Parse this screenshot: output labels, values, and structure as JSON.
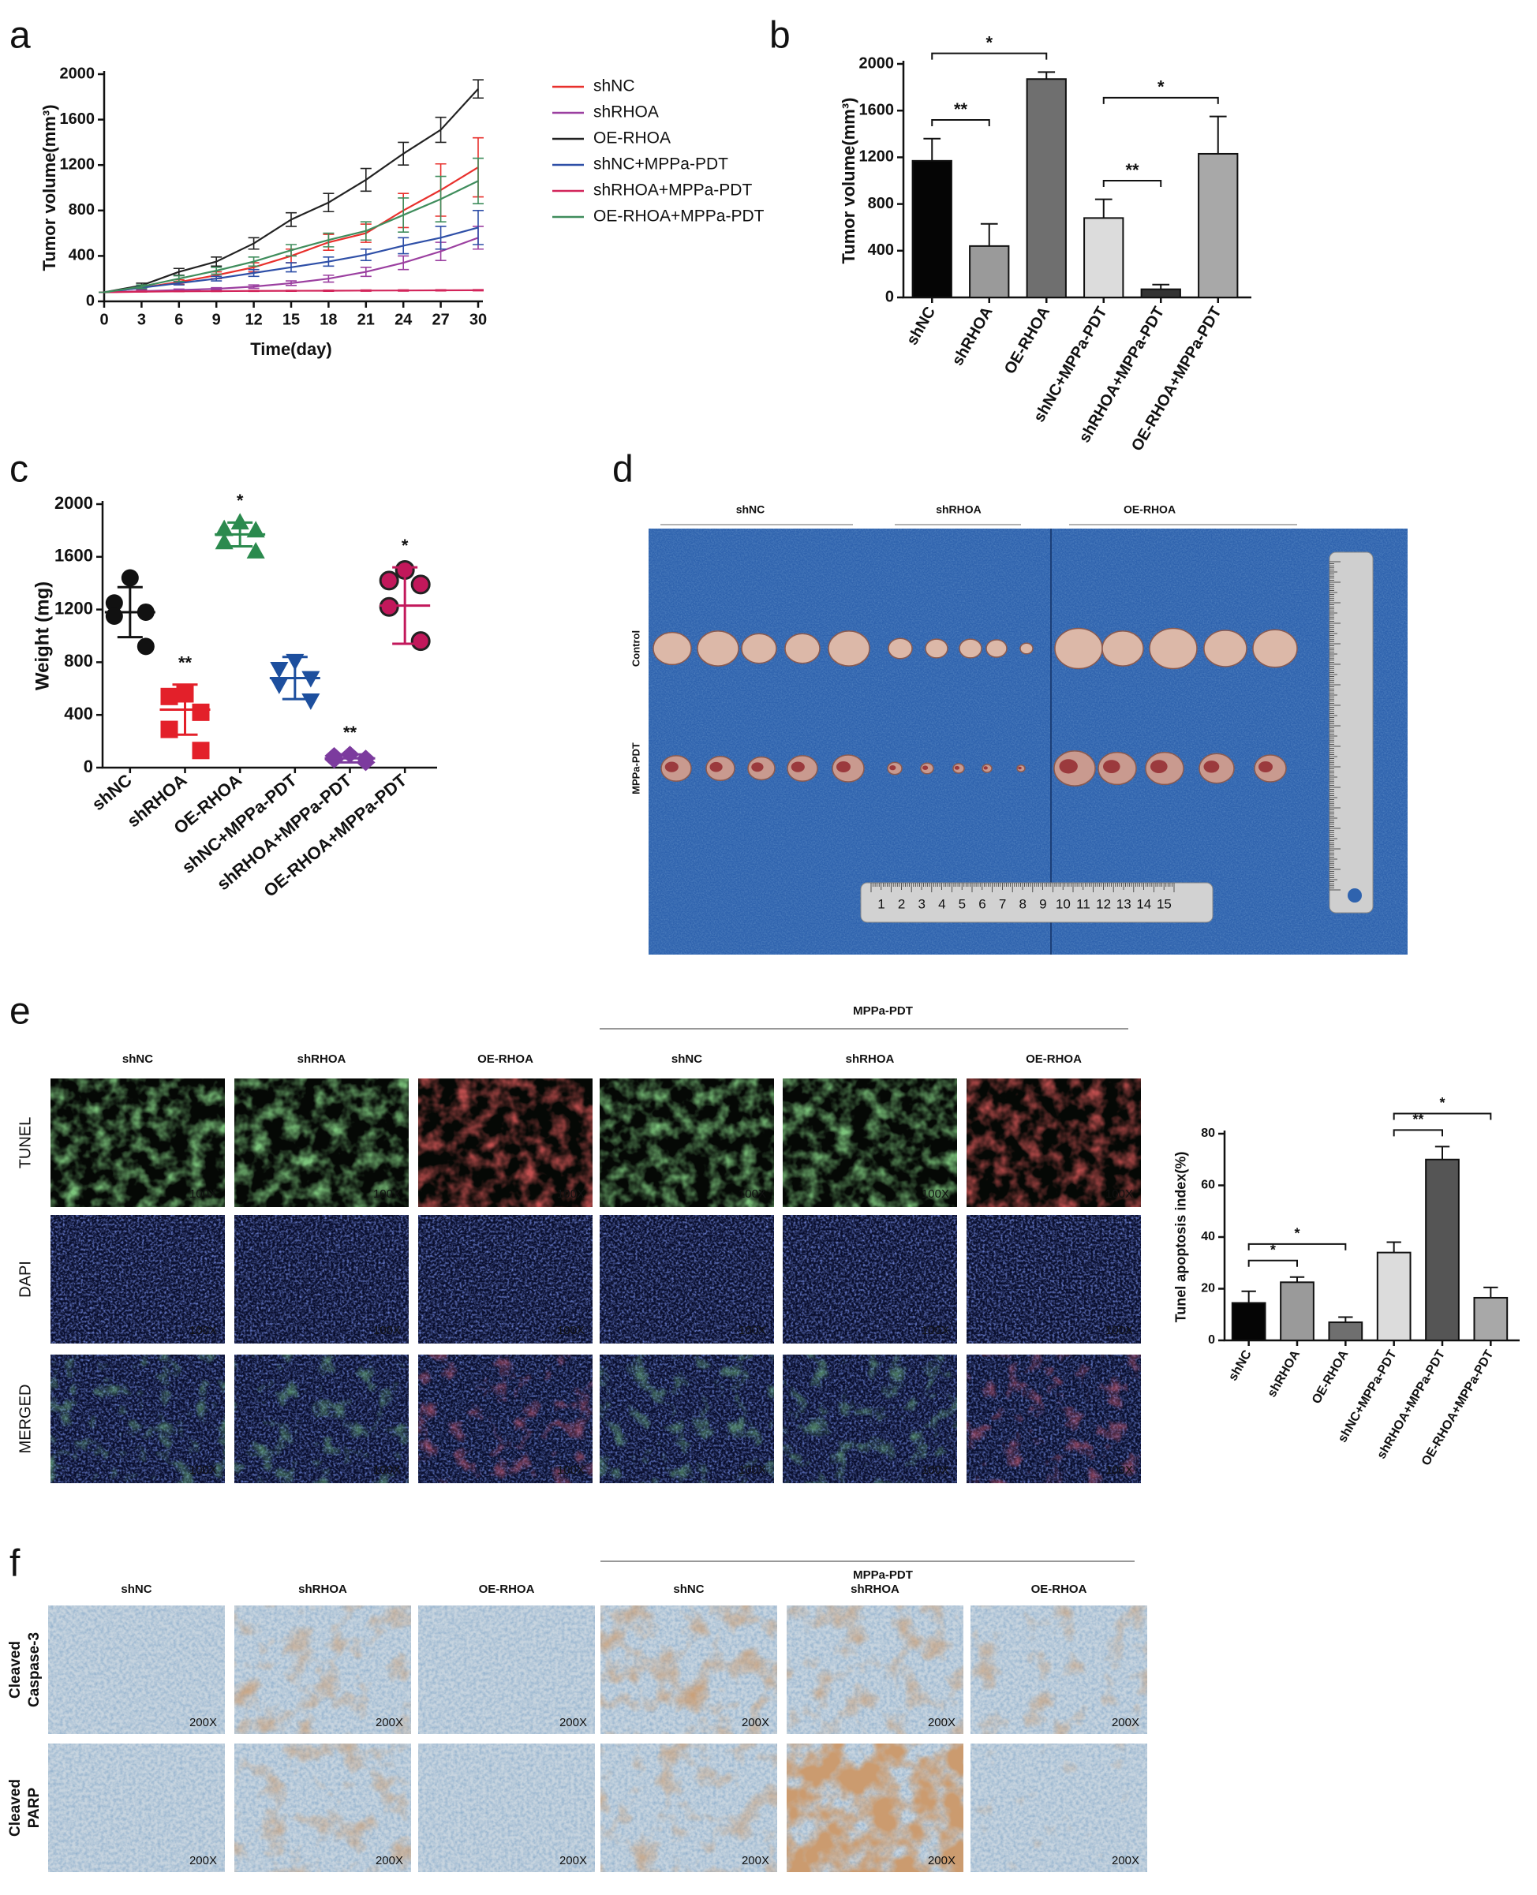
{
  "panel_letters": [
    "a",
    "b",
    "c",
    "d",
    "e",
    "f"
  ],
  "chart_data": [
    {
      "type": "line",
      "xlabel": "Time(day)",
      "ylabel": "Tumor volume(mm³)",
      "x": [
        0,
        3,
        6,
        9,
        12,
        15,
        18,
        21,
        24,
        27,
        30
      ],
      "xlim": [
        0,
        30
      ],
      "xticks": [
        0,
        3,
        6,
        9,
        12,
        15,
        18,
        21,
        24,
        27,
        30
      ],
      "ylim": [
        0,
        2000
      ],
      "yticks": [
        0,
        400,
        800,
        1200,
        1600,
        2000
      ],
      "series": [
        {
          "name": "shNC",
          "color": "#e8302c",
          "values": [
            80,
            120,
            170,
            230,
            300,
            400,
            520,
            600,
            800,
            980,
            1180
          ],
          "errors": [
            0,
            15,
            20,
            30,
            40,
            60,
            70,
            80,
            150,
            230,
            260
          ]
        },
        {
          "name": "shRHOA",
          "color": "#9b3fa0",
          "values": [
            80,
            90,
            100,
            110,
            130,
            160,
            200,
            260,
            340,
            440,
            560
          ],
          "errors": [
            0,
            5,
            8,
            10,
            15,
            20,
            30,
            40,
            60,
            80,
            100
          ]
        },
        {
          "name": "OE-RHOA",
          "color": "#222222",
          "values": [
            80,
            140,
            260,
            350,
            510,
            720,
            870,
            1070,
            1300,
            1510,
            1870
          ],
          "errors": [
            0,
            20,
            30,
            40,
            50,
            60,
            80,
            100,
            100,
            110,
            80
          ]
        },
        {
          "name": "shNC+MPPa-PDT",
          "color": "#2e4fa7",
          "values": [
            80,
            120,
            160,
            200,
            250,
            300,
            350,
            410,
            490,
            560,
            650
          ],
          "errors": [
            0,
            10,
            15,
            20,
            30,
            40,
            40,
            50,
            70,
            100,
            150
          ]
        },
        {
          "name": "shRHOA+MPPa-PDT",
          "color": "#d2245a",
          "values": [
            80,
            85,
            88,
            90,
            92,
            93,
            94,
            95,
            96,
            97,
            98
          ],
          "errors": [
            0,
            2,
            3,
            3,
            4,
            4,
            5,
            5,
            5,
            5,
            5
          ]
        },
        {
          "name": "OE-RHOA+MPPa-PDT",
          "color": "#3f8d5c",
          "values": [
            80,
            130,
            200,
            270,
            350,
            450,
            540,
            620,
            760,
            900,
            1060
          ],
          "errors": [
            0,
            15,
            25,
            30,
            40,
            50,
            60,
            80,
            150,
            200,
            200
          ]
        }
      ]
    },
    {
      "type": "bar",
      "ylabel": "Tumor volume(mm³)",
      "categories": [
        "shNC",
        "shRHOA",
        "OE-RHOA",
        "shNC+MPPa-PDT",
        "shRHOA+MPPa-PDT",
        "OE-RHOA+MPPa-PDT"
      ],
      "values": [
        1170,
        440,
        1870,
        680,
        70,
        1230
      ],
      "errors": [
        190,
        190,
        60,
        160,
        40,
        320
      ],
      "colors": [
        "#050505",
        "#9a9a9a",
        "#6f6f6f",
        "#dcdcdc",
        "#333333",
        "#a8a8a8"
      ],
      "ylim": [
        0,
        2000
      ],
      "yticks": [
        0,
        400,
        800,
        1200,
        1600,
        2000
      ],
      "comparisons": [
        {
          "pair": [
            0,
            2
          ],
          "label": "*"
        },
        {
          "pair": [
            0,
            1
          ],
          "label": "**"
        },
        {
          "pair": [
            3,
            5
          ],
          "label": "*"
        },
        {
          "pair": [
            3,
            4
          ],
          "label": "**"
        }
      ]
    },
    {
      "type": "dot",
      "ylabel": "Weight (mg)",
      "categories": [
        "shNC",
        "shRHOA",
        "OE-RHOA",
        "shNC+MPPa-PDT",
        "shRHOA+MPPa-PDT",
        "OE-RHOA+MPPa-PDT"
      ],
      "ylim": [
        0,
        2000
      ],
      "yticks": [
        0,
        400,
        800,
        1200,
        1600,
        2000
      ],
      "groups": [
        {
          "color": "#111111",
          "marker": "circle",
          "points": [
            1440,
            1250,
            1180,
            1150,
            920
          ],
          "mean": 1180,
          "sd": 190,
          "label": null
        },
        {
          "color": "#e3202a",
          "marker": "square",
          "points": [
            560,
            540,
            420,
            290,
            130
          ],
          "mean": 440,
          "sd": 190,
          "label": "**"
        },
        {
          "color": "#2b8a4e",
          "marker": "triangle-up",
          "points": [
            1860,
            1810,
            1800,
            1710,
            1640
          ],
          "mean": 1770,
          "sd": 90,
          "label": "*"
        },
        {
          "color": "#1d4f9e",
          "marker": "triangle-down",
          "points": [
            810,
            750,
            680,
            630,
            510
          ],
          "mean": 680,
          "sd": 160,
          "label": null
        },
        {
          "color": "#7c3b9e",
          "marker": "diamond",
          "points": [
            100,
            90,
            70,
            60,
            40
          ],
          "mean": 70,
          "sd": 30,
          "label": "**"
        },
        {
          "color": "#c2185b",
          "marker": "circle-outline",
          "points": [
            1500,
            1420,
            1390,
            1220,
            960
          ],
          "mean": 1230,
          "sd": 290,
          "label": "*"
        }
      ]
    },
    {
      "type": "bar",
      "ylabel": "Tunel apoptosis index(%)",
      "categories": [
        "shNC",
        "shRHOA",
        "OE-RHOA",
        "shNC+MPPa-PDT",
        "shRHOA+MPPa-PDT",
        "OE-RHOA+MPPa-PDT"
      ],
      "values": [
        14.5,
        22.5,
        7,
        34,
        70,
        16.5
      ],
      "errors": [
        4.5,
        2,
        2,
        4,
        5,
        4
      ],
      "colors": [
        "#050505",
        "#9a9a9a",
        "#6f6f6f",
        "#dcdcdc",
        "#555555",
        "#a8a8a8"
      ],
      "ylim": [
        0,
        80
      ],
      "yticks": [
        0,
        20,
        40,
        60,
        80
      ],
      "comparisons": [
        {
          "pair": [
            0,
            1
          ],
          "label": "*"
        },
        {
          "pair": [
            0,
            2
          ],
          "label": "*"
        },
        {
          "pair": [
            3,
            4
          ],
          "label": "**"
        },
        {
          "pair": [
            3,
            5
          ],
          "label": "*"
        }
      ]
    }
  ],
  "panel_d": {
    "columns": [
      "shNC",
      "shRHOA",
      "OE-RHOA"
    ],
    "rows": [
      "Control",
      "MPPa-PDT"
    ],
    "ruler_numbers": [
      1,
      2,
      3,
      4,
      5,
      6,
      7,
      8,
      9,
      10,
      11,
      12,
      13,
      14,
      15
    ]
  },
  "panel_e": {
    "group_header": "MPPa-PDT",
    "columns": [
      "shNC",
      "shRHOA",
      "OE-RHOA",
      "shNC",
      "shRHOA",
      "OE-RHOA"
    ],
    "rows": [
      "TUNEL",
      "DAPI",
      "MERGED"
    ],
    "magnification": "100X"
  },
  "panel_f": {
    "group_header": "MPPa-PDT",
    "columns": [
      "shNC",
      "shRHOA",
      "OE-RHOA",
      "shNC",
      "shRHOA",
      "OE-RHOA"
    ],
    "rows": [
      [
        "Cleaved",
        "Caspase-3"
      ],
      [
        "Cleaved",
        "PARP"
      ]
    ],
    "magnification": "200X"
  }
}
